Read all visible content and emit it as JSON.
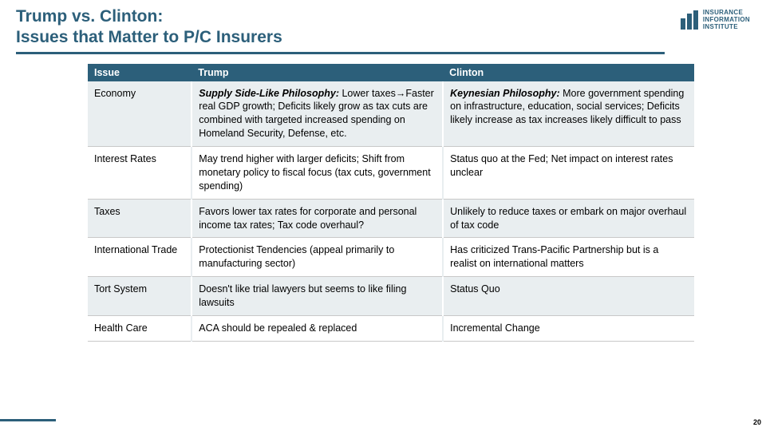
{
  "title_line1": "Trump vs. Clinton:",
  "title_line2": "Issues that Matter to P/C Insurers",
  "logo": {
    "line1": "INSURANCE",
    "line2": "INFORMATION",
    "line3": "INSTITUTE"
  },
  "table": {
    "headers": {
      "issue": "Issue",
      "trump": "Trump",
      "clinton": "Clinton"
    },
    "rows": [
      {
        "issue": "Economy",
        "trump_lead": "Supply Side-Like Philosophy:",
        "trump_body": " Lower taxes→Faster real GDP growth; Deficits likely grow as tax cuts are combined with targeted increased spending on Homeland Security, Defense, etc.",
        "clinton_lead": "Keynesian Philosophy:",
        "clinton_body": " More government spending on infrastructure, education, social services; Deficits likely increase as tax increases likely difficult to pass"
      },
      {
        "issue": "Interest Rates",
        "trump_lead": "",
        "trump_body": "May trend higher with larger deficits; Shift from monetary policy to fiscal focus (tax cuts, government spending)",
        "clinton_lead": "",
        "clinton_body": "Status quo at the Fed; Net impact on interest rates unclear"
      },
      {
        "issue": "Taxes",
        "trump_lead": "",
        "trump_body": "Favors lower tax rates for corporate and personal income tax rates; Tax code overhaul?",
        "clinton_lead": "",
        "clinton_body": "Unlikely to reduce taxes or embark on major overhaul of tax code"
      },
      {
        "issue": "International Trade",
        "trump_lead": "",
        "trump_body": "Protectionist Tendencies (appeal primarily to manufacturing sector)",
        "clinton_lead": "",
        "clinton_body": "Has criticized Trans-Pacific Partnership but is a realist on international matters"
      },
      {
        "issue": "Tort System",
        "trump_lead": "",
        "trump_body": "Doesn't like trial lawyers but seems to like filing lawsuits",
        "clinton_lead": "",
        "clinton_body": "Status Quo"
      },
      {
        "issue": "Health Care",
        "trump_lead": "",
        "trump_body": "ACA should be repealed & replaced",
        "clinton_lead": "",
        "clinton_body": "Incremental Change"
      }
    ]
  },
  "page_number": "20"
}
